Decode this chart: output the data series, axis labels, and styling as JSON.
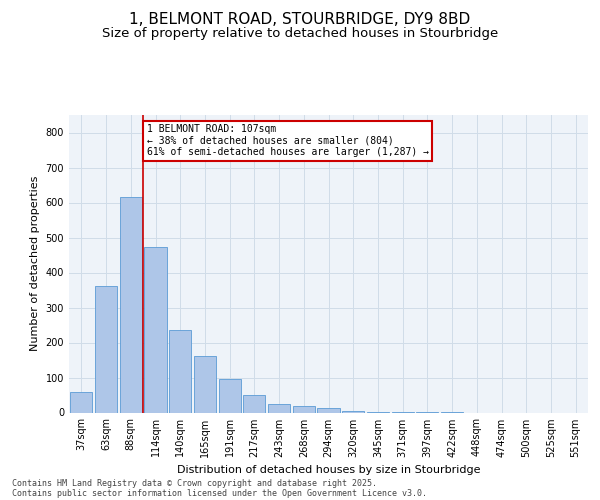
{
  "title_line1": "1, BELMONT ROAD, STOURBRIDGE, DY9 8BD",
  "title_line2": "Size of property relative to detached houses in Stourbridge",
  "xlabel": "Distribution of detached houses by size in Stourbridge",
  "ylabel": "Number of detached properties",
  "categories": [
    "37sqm",
    "63sqm",
    "88sqm",
    "114sqm",
    "140sqm",
    "165sqm",
    "191sqm",
    "217sqm",
    "243sqm",
    "268sqm",
    "294sqm",
    "320sqm",
    "345sqm",
    "371sqm",
    "397sqm",
    "422sqm",
    "448sqm",
    "474sqm",
    "500sqm",
    "525sqm",
    "551sqm"
  ],
  "values": [
    60,
    362,
    617,
    472,
    236,
    162,
    97,
    50,
    24,
    19,
    14,
    5,
    2,
    1,
    1,
    1,
    0,
    0,
    0,
    0,
    0
  ],
  "bar_color": "#aec6e8",
  "bar_edge_color": "#5b9bd5",
  "grid_color": "#d0dce8",
  "background_color": "#eef3f9",
  "vline_x": 2.5,
  "vline_color": "#cc0000",
  "annotation_text": "1 BELMONT ROAD: 107sqm\n← 38% of detached houses are smaller (804)\n61% of semi-detached houses are larger (1,287) →",
  "annotation_box_color": "#cc0000",
  "annotation_bg": "white",
  "ylim": [
    0,
    850
  ],
  "yticks": [
    0,
    100,
    200,
    300,
    400,
    500,
    600,
    700,
    800
  ],
  "footer_line1": "Contains HM Land Registry data © Crown copyright and database right 2025.",
  "footer_line2": "Contains public sector information licensed under the Open Government Licence v3.0.",
  "title_fontsize": 11,
  "subtitle_fontsize": 9.5,
  "axis_label_fontsize": 8,
  "tick_fontsize": 7,
  "annotation_fontsize": 7,
  "footer_fontsize": 6
}
